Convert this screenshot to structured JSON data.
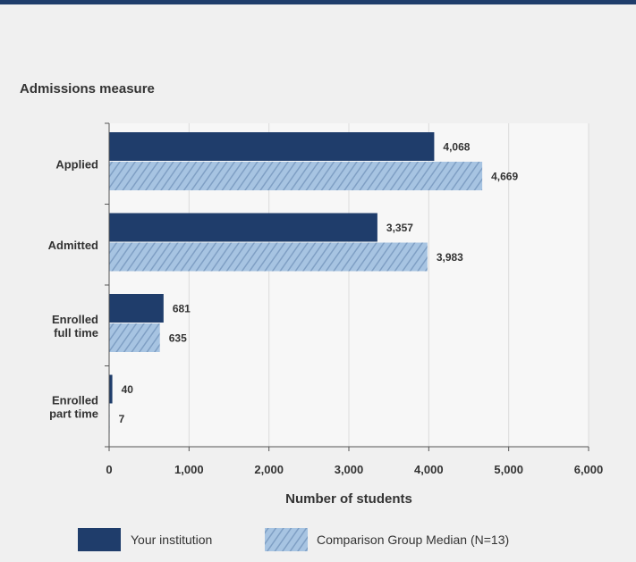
{
  "colors": {
    "top_bar": "#1f3d6b",
    "background": "#f0f0f0",
    "plot_background": "#f7f7f7",
    "series_primary": "#1f3d6b",
    "series_comparison": "#a7c4e2",
    "series_comparison_hatch": "#7f9fc4",
    "text": "#333333"
  },
  "chart_data": {
    "type": "bar",
    "orientation": "horizontal",
    "title": "Admissions measure",
    "xlabel": "Number of students",
    "ylabel": "",
    "categories": [
      [
        "Applied"
      ],
      [
        "Admitted"
      ],
      [
        "Enrolled",
        "full time"
      ],
      [
        "Enrolled",
        "part time"
      ]
    ],
    "series": [
      {
        "name": "Your institution",
        "values": [
          4068,
          3357,
          681,
          40
        ],
        "labels": [
          "4,068",
          "3,357",
          "681",
          "40"
        ]
      },
      {
        "name": "Comparison Group Median (N=13)",
        "values": [
          4669,
          3983,
          635,
          7
        ],
        "labels": [
          "4,669",
          "3,983",
          "635",
          "7"
        ]
      }
    ],
    "xlim": [
      0,
      6000
    ],
    "xticks": [
      0,
      1000,
      2000,
      3000,
      4000,
      5000,
      6000
    ],
    "xtick_labels": [
      "0",
      "1,000",
      "2,000",
      "3,000",
      "4,000",
      "5,000",
      "6,000"
    ],
    "grid": "vertical",
    "legend_position": "bottom"
  }
}
